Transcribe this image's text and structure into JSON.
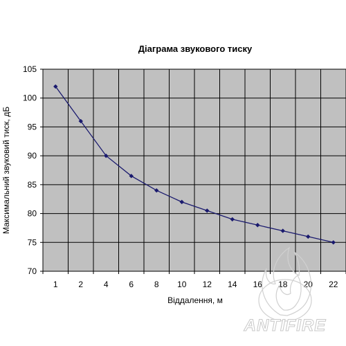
{
  "chart_data": {
    "type": "line",
    "title": "Діаграма звукового тиску",
    "xlabel": "Віддалення, м",
    "ylabel": "Максимальний звуковий тиск, дБ",
    "categories": [
      "1",
      "2",
      "4",
      "6",
      "8",
      "10",
      "12",
      "14",
      "16",
      "18",
      "20",
      "22"
    ],
    "series": [
      {
        "values": [
          102,
          96,
          90,
          86.5,
          84,
          82,
          80.5,
          79,
          78,
          77,
          76,
          75
        ]
      }
    ],
    "ylim": [
      70,
      105
    ],
    "yticks": [
      70,
      75,
      80,
      85,
      90,
      95,
      100,
      105
    ],
    "grid": true,
    "legend": "none",
    "colors": {
      "plot_background": "#c0c0c0",
      "grid": "#000000",
      "line": "#1a1a6e"
    }
  },
  "watermark": {
    "text": "ANTIFIRE"
  }
}
